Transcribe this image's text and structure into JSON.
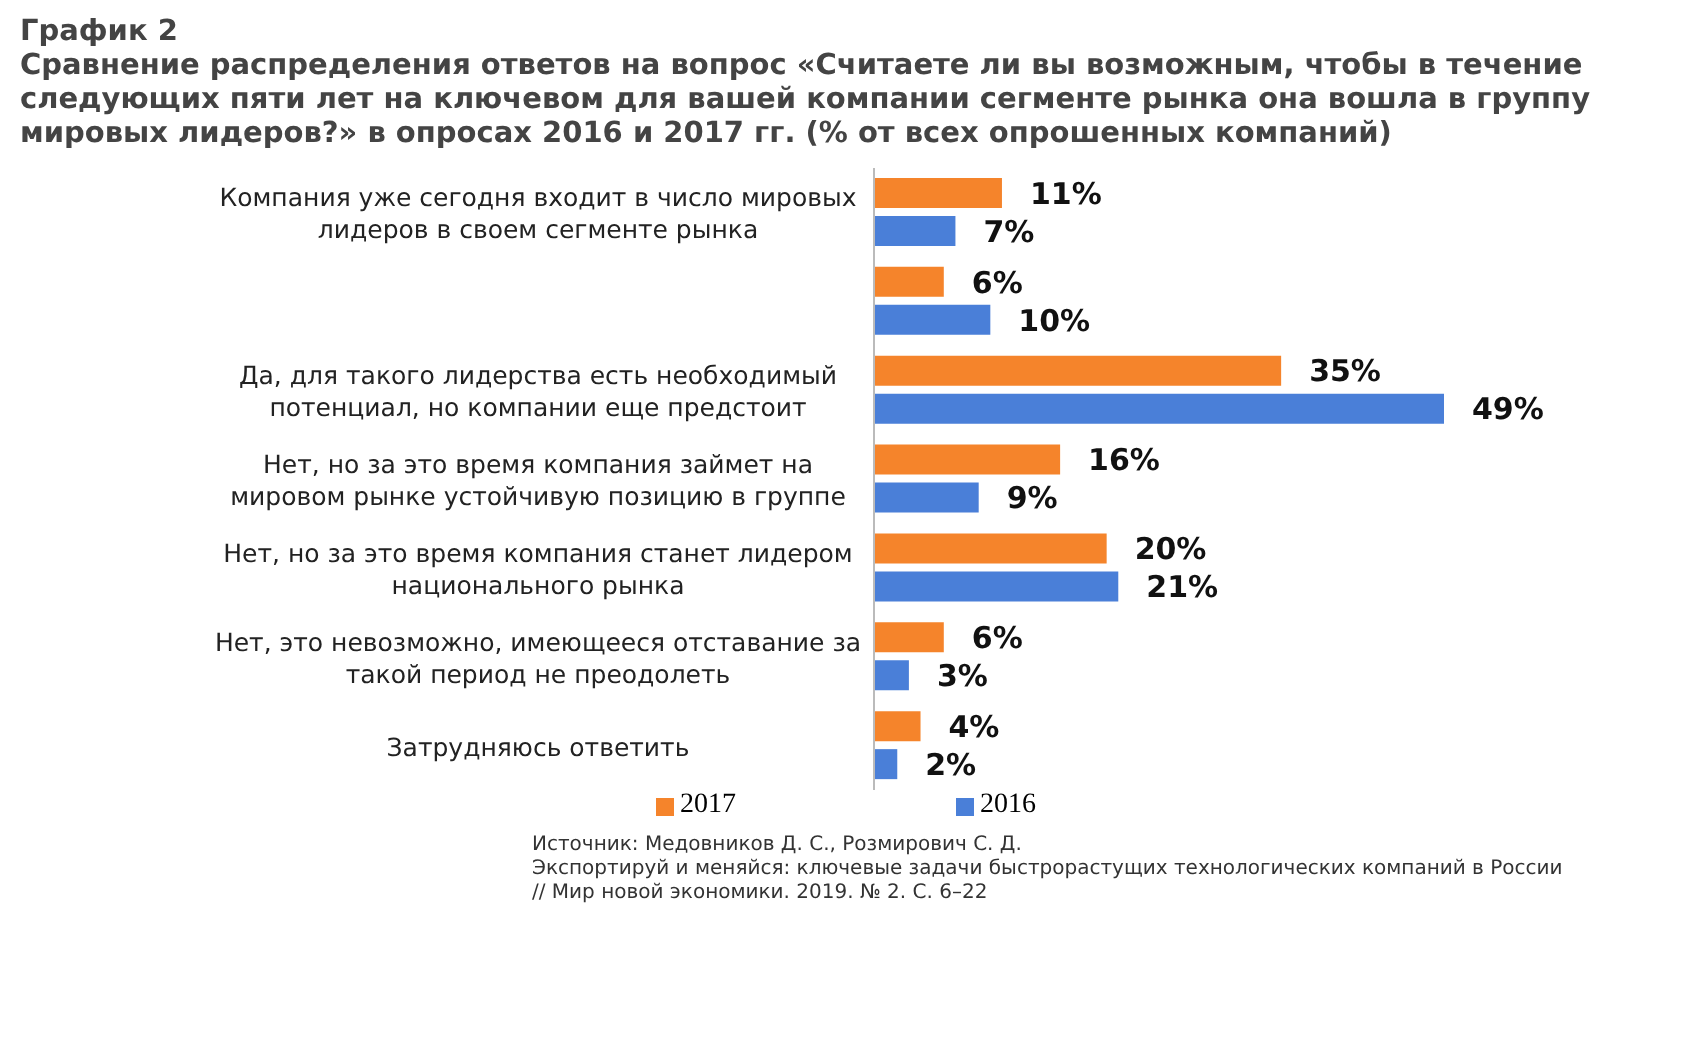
{
  "chart_data": {
    "type": "bar",
    "orientation": "horizontal",
    "title": "График 2",
    "subtitle": "Сравнение распределения ответов на вопрос «Считаете ли вы возможным, чтобы в течение следующих пяти лет на ключевом для вашей компании сегменте рынка она вошла в группу мировых лидеров?» в опросах 2016 и 2017 гг. (% от всех опрошенных компаний)",
    "categories": [
      "Компания уже сегодня входит в число мировых лидеров в своем сегменте рынка",
      null,
      "Да, для такого лидерства есть необходимый потенциал, но компании еще предстоит",
      "Нет, но за это время компания займет на мировом рынке устойчивую позицию в группе",
      "Нет, но за это время компания станет лидером национального рынка",
      "Нет, это невозможно, имеющееся отставание за такой период не преодолеть",
      "Затрудняюсь ответить"
    ],
    "series": [
      {
        "name": "2017",
        "color": "#f5842b",
        "values": [
          11,
          6,
          35,
          16,
          20,
          6,
          4
        ],
        "value_labels": [
          "11%",
          "6%",
          "35%",
          "16%",
          "20%",
          "6%",
          "4%"
        ]
      },
      {
        "name": "2016",
        "color": "#4a7fd8",
        "values": [
          7,
          10,
          49,
          9,
          21,
          3,
          2
        ],
        "value_labels": [
          "7%",
          "10%",
          "49%",
          "9%",
          "21%",
          "3%",
          "2%"
        ]
      }
    ],
    "legend": "bottom",
    "grid": false,
    "annotations": [
      "Источник: Медовников Д. С., Розмирович С. Д.",
      "Экспортируй и меняйся: ключевые задачи быстрорастущих технологических компаний в России",
      "// Мир новой экономики. 2019. № 2. С. 6–22"
    ]
  }
}
